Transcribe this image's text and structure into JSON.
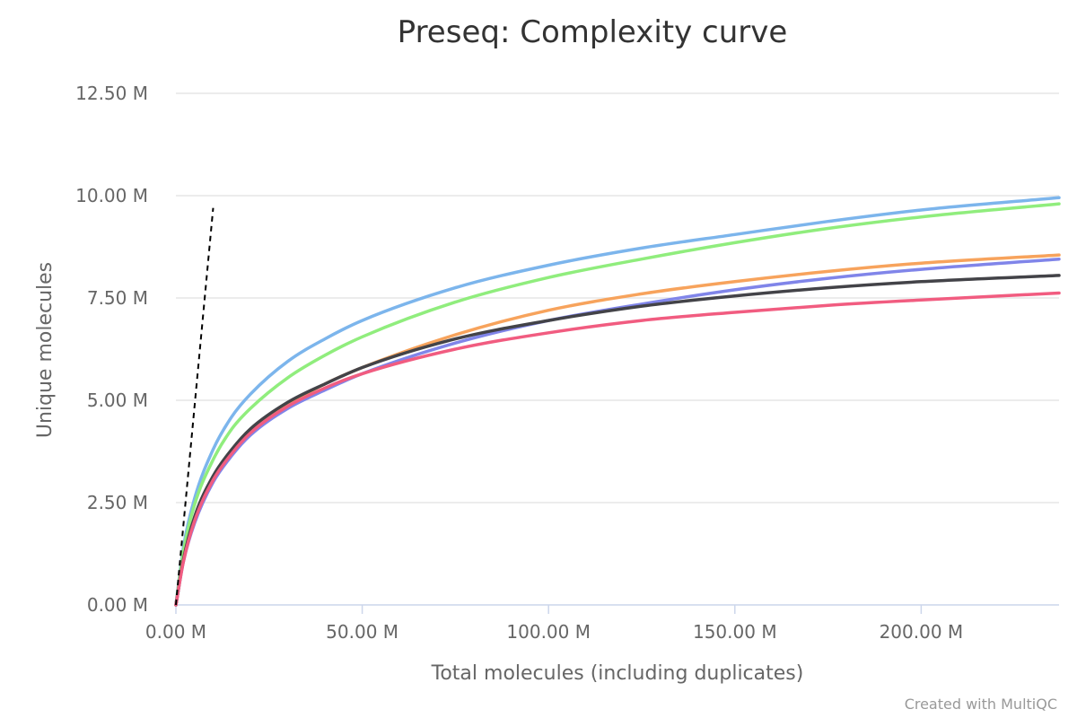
{
  "chart_data": {
    "type": "line",
    "title": "Preseq: Complexity curve",
    "xlabel": "Total molecules (including duplicates)",
    "ylabel": "Unique molecules",
    "xlim": [
      0,
      237000000
    ],
    "ylim": [
      0,
      12500000
    ],
    "x_ticks": [
      0,
      50000000,
      100000000,
      150000000,
      200000000
    ],
    "x_tick_labels": [
      "0.00 M",
      "50.00 M",
      "100.00 M",
      "150.00 M",
      "200.00 M"
    ],
    "y_ticks": [
      0,
      2500000,
      5000000,
      7500000,
      10000000,
      12500000
    ],
    "y_tick_labels": [
      "0.00 M",
      "2.50 M",
      "5.00 M",
      "7.50 M",
      "10.00 M",
      "12.50 M"
    ],
    "grid": true,
    "reference_line": {
      "style": "dashed",
      "color": "#000000",
      "points": [
        [
          0,
          0
        ],
        [
          10000000,
          9700000
        ]
      ]
    },
    "series": [
      {
        "color": "#7cb5ec",
        "points": [
          [
            0,
            0
          ],
          [
            2000000,
            1400000
          ],
          [
            5000000,
            2600000
          ],
          [
            10000000,
            3800000
          ],
          [
            15000000,
            4600000
          ],
          [
            20000000,
            5150000
          ],
          [
            30000000,
            5950000
          ],
          [
            40000000,
            6500000
          ],
          [
            50000000,
            6950000
          ],
          [
            75000000,
            7750000
          ],
          [
            100000000,
            8300000
          ],
          [
            125000000,
            8720000
          ],
          [
            150000000,
            9050000
          ],
          [
            175000000,
            9370000
          ],
          [
            200000000,
            9650000
          ],
          [
            237000000,
            9950000
          ]
        ]
      },
      {
        "color": "#90ed7d",
        "points": [
          [
            0,
            0
          ],
          [
            2000000,
            1300000
          ],
          [
            5000000,
            2450000
          ],
          [
            10000000,
            3550000
          ],
          [
            15000000,
            4300000
          ],
          [
            20000000,
            4800000
          ],
          [
            30000000,
            5550000
          ],
          [
            40000000,
            6100000
          ],
          [
            50000000,
            6550000
          ],
          [
            75000000,
            7400000
          ],
          [
            100000000,
            8000000
          ],
          [
            125000000,
            8450000
          ],
          [
            150000000,
            8850000
          ],
          [
            175000000,
            9200000
          ],
          [
            200000000,
            9480000
          ],
          [
            237000000,
            9800000
          ]
        ]
      },
      {
        "color": "#f7a35c",
        "points": [
          [
            0,
            0
          ],
          [
            2000000,
            1100000
          ],
          [
            5000000,
            2100000
          ],
          [
            10000000,
            3100000
          ],
          [
            15000000,
            3750000
          ],
          [
            20000000,
            4250000
          ],
          [
            30000000,
            4900000
          ],
          [
            40000000,
            5400000
          ],
          [
            50000000,
            5800000
          ],
          [
            75000000,
            6600000
          ],
          [
            100000000,
            7200000
          ],
          [
            125000000,
            7600000
          ],
          [
            150000000,
            7900000
          ],
          [
            175000000,
            8150000
          ],
          [
            200000000,
            8350000
          ],
          [
            237000000,
            8550000
          ]
        ]
      },
      {
        "color": "#8085e9",
        "points": [
          [
            0,
            0
          ],
          [
            2000000,
            1050000
          ],
          [
            5000000,
            2000000
          ],
          [
            10000000,
            3000000
          ],
          [
            15000000,
            3650000
          ],
          [
            20000000,
            4150000
          ],
          [
            30000000,
            4800000
          ],
          [
            40000000,
            5250000
          ],
          [
            50000000,
            5650000
          ],
          [
            75000000,
            6400000
          ],
          [
            100000000,
            6950000
          ],
          [
            125000000,
            7350000
          ],
          [
            150000000,
            7700000
          ],
          [
            175000000,
            7980000
          ],
          [
            200000000,
            8200000
          ],
          [
            237000000,
            8450000
          ]
        ]
      },
      {
        "color": "#434348",
        "points": [
          [
            0,
            0
          ],
          [
            2000000,
            1100000
          ],
          [
            5000000,
            2150000
          ],
          [
            10000000,
            3150000
          ],
          [
            15000000,
            3800000
          ],
          [
            20000000,
            4300000
          ],
          [
            30000000,
            4950000
          ],
          [
            40000000,
            5400000
          ],
          [
            50000000,
            5800000
          ],
          [
            75000000,
            6500000
          ],
          [
            100000000,
            6950000
          ],
          [
            125000000,
            7300000
          ],
          [
            150000000,
            7550000
          ],
          [
            175000000,
            7750000
          ],
          [
            200000000,
            7900000
          ],
          [
            237000000,
            8050000
          ]
        ]
      },
      {
        "color": "#f15c80",
        "points": [
          [
            0,
            0
          ],
          [
            2000000,
            1050000
          ],
          [
            5000000,
            2050000
          ],
          [
            10000000,
            3050000
          ],
          [
            15000000,
            3700000
          ],
          [
            20000000,
            4200000
          ],
          [
            30000000,
            4850000
          ],
          [
            40000000,
            5300000
          ],
          [
            50000000,
            5650000
          ],
          [
            75000000,
            6250000
          ],
          [
            100000000,
            6650000
          ],
          [
            125000000,
            6950000
          ],
          [
            150000000,
            7150000
          ],
          [
            175000000,
            7320000
          ],
          [
            200000000,
            7450000
          ],
          [
            237000000,
            7620000
          ]
        ]
      }
    ]
  },
  "credit": "Created with MultiQC"
}
